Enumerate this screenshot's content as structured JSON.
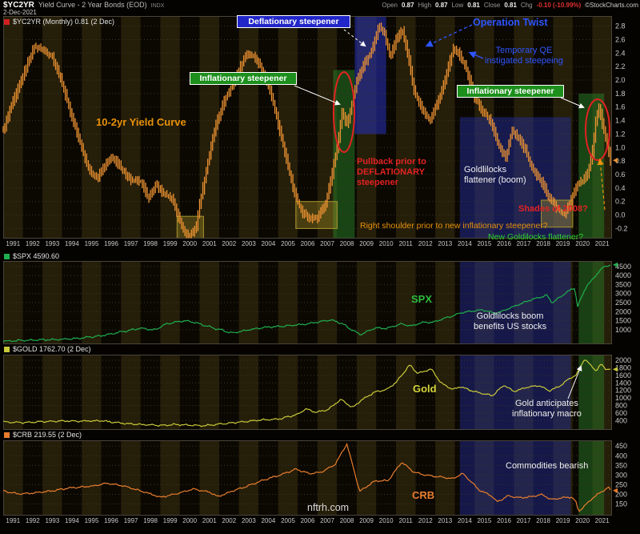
{
  "header": {
    "symbol": "$YC2YR",
    "title": "Yield Curve - 2 Year Bonds (EOD)",
    "index_tag": "INDX",
    "date": "2-Dec-2021",
    "source": "©StockCharts.com",
    "quote": {
      "open_label": "Open",
      "open_val": "0.87",
      "high_label": "High",
      "high_val": "0.87",
      "low_label": "Low",
      "low_val": "0.81",
      "close_label": "Close",
      "close_val": "0.81",
      "chg_label": "Chg",
      "chg_val": "-0.10 (-10.99%)"
    }
  },
  "legends": {
    "yc": "$YC2YR (Monthly) 0.81 (2 Dec)",
    "spx": "$SPX 4590.60",
    "gold": "$GOLD 1762.70 (2 Dec)",
    "crb": "$CRB 219.55 (2 Dec)"
  },
  "annotations": {
    "deflationary_steepener": "Deflationary steepener",
    "inflationary_steepener_1": "Inflationary steepener",
    "inflationary_steepener_2": "Inflationary steepener",
    "operation_twist": "Operation Twist",
    "temporary_qe": "Temporary QE\ninstigated steepeing",
    "yield_curve_label": "10-2yr Yield Curve",
    "pullback": "Pullback prior to\nDEFLATIONARY\nsteepener",
    "goldilocks_flattener": "Goldlilocks\nflattener (boom)",
    "shades_2008": "Shades of 2008?",
    "right_shoulder": "Right shoulder prior to new inflationary steepener?",
    "new_goldilocks": "New Goldilocks flattener?",
    "spx_label": "SPX",
    "goldilocks_boom": "Goldlilocks boom\nbenefits US stocks",
    "gold_label": "Gold",
    "gold_macro": "Gold anticipates\ninflationary macro",
    "commodities_bearish": "Commodities bearish",
    "crb_label": "CRB",
    "watermark": "nftrh.com"
  },
  "colors": {
    "background": "#050300",
    "stripe_light": "#251e09",
    "stripe_dark": "#0b0802",
    "grid": "#3a352a",
    "frame": "#4a443a",
    "axis_text": "#c8c8c8",
    "box_fill": "rgba(170,150,40,0.38)",
    "box_stroke": "#a8942f",
    "yc_bar": "#f09433",
    "spx_line": "#1faf4e",
    "gold_line": "#c9c93a",
    "crb_line": "#e87d2e",
    "annotation_blue": "#2e55ff",
    "annotation_red": "#e32222",
    "annotation_orange": "#e8920a",
    "annotation_green": "#2dd22d"
  },
  "x_years": [
    "1991",
    "1992",
    "1993",
    "1994",
    "1995",
    "1996",
    "1997",
    "1998",
    "1999",
    "2000",
    "2001",
    "2002",
    "2003",
    "2004",
    "2005",
    "2006",
    "2007",
    "2008",
    "2009",
    "2010",
    "2011",
    "2012",
    "2013",
    "2014",
    "2015",
    "2016",
    "2017",
    "2018",
    "2019",
    "2020",
    "2021"
  ],
  "chart_data": [
    {
      "id": "yc",
      "type": "bar",
      "title": "$YC2YR (Monthly) 10-2yr Yield Curve",
      "color": "#f09433",
      "x_range": [
        1991,
        2022
      ],
      "ylim": [
        -0.35,
        2.95
      ],
      "yticks": [
        2.8,
        2.6,
        2.4,
        2.2,
        2.0,
        1.8,
        1.6,
        1.4,
        1.2,
        1.0,
        0.8,
        0.6,
        0.4,
        0.2,
        0.0,
        -0.2
      ],
      "ytick_labels": [
        "2.8",
        "2.6",
        "2.4",
        "2.2",
        "2.0",
        "1.8",
        "1.6",
        "1.4",
        "1.2",
        "1.0",
        "0.8",
        "0.6",
        "0.4",
        "0.2",
        "0.0",
        "-0.2"
      ],
      "series": [
        [
          1991.0,
          1.25
        ],
        [
          1991.4,
          1.6
        ],
        [
          1991.8,
          1.9
        ],
        [
          1992.3,
          2.3
        ],
        [
          1992.6,
          2.5
        ],
        [
          1993.0,
          2.45
        ],
        [
          1993.5,
          2.35
        ],
        [
          1994.0,
          1.95
        ],
        [
          1994.5,
          1.45
        ],
        [
          1995.0,
          1.0
        ],
        [
          1995.4,
          0.65
        ],
        [
          1995.8,
          0.55
        ],
        [
          1996.2,
          0.75
        ],
        [
          1996.6,
          0.85
        ],
        [
          1997.0,
          0.7
        ],
        [
          1997.5,
          0.5
        ],
        [
          1998.0,
          0.5
        ],
        [
          1998.4,
          0.25
        ],
        [
          1998.8,
          0.45
        ],
        [
          1999.2,
          0.3
        ],
        [
          1999.6,
          0.25
        ],
        [
          2000.0,
          -0.1
        ],
        [
          2000.4,
          -0.33
        ],
        [
          2000.8,
          -0.2
        ],
        [
          2001.0,
          0.15
        ],
        [
          2001.4,
          0.75
        ],
        [
          2001.8,
          1.3
        ],
        [
          2002.2,
          1.65
        ],
        [
          2002.6,
          1.9
        ],
        [
          2003.0,
          2.15
        ],
        [
          2003.4,
          2.4
        ],
        [
          2003.8,
          2.35
        ],
        [
          2004.2,
          2.15
        ],
        [
          2004.6,
          1.85
        ],
        [
          2005.0,
          1.35
        ],
        [
          2005.4,
          0.85
        ],
        [
          2005.8,
          0.35
        ],
        [
          2006.2,
          0.05
        ],
        [
          2006.6,
          -0.05
        ],
        [
          2007.0,
          -0.05
        ],
        [
          2007.4,
          0.15
        ],
        [
          2007.7,
          0.55
        ],
        [
          2008.0,
          1.0
        ],
        [
          2008.25,
          1.5
        ],
        [
          2008.5,
          1.35
        ],
        [
          2008.75,
          1.65
        ],
        [
          2009.0,
          2.0
        ],
        [
          2009.4,
          2.25
        ],
        [
          2009.8,
          2.45
        ],
        [
          2010.1,
          2.8
        ],
        [
          2010.4,
          2.7
        ],
        [
          2010.7,
          2.35
        ],
        [
          2011.0,
          2.6
        ],
        [
          2011.3,
          2.75
        ],
        [
          2011.6,
          2.4
        ],
        [
          2011.9,
          1.85
        ],
        [
          2012.3,
          1.6
        ],
        [
          2012.7,
          1.4
        ],
        [
          2013.1,
          1.65
        ],
        [
          2013.5,
          2.0
        ],
        [
          2013.9,
          2.45
        ],
        [
          2014.2,
          2.4
        ],
        [
          2014.6,
          2.15
        ],
        [
          2015.0,
          1.75
        ],
        [
          2015.4,
          1.55
        ],
        [
          2015.8,
          1.4
        ],
        [
          2016.2,
          1.05
        ],
        [
          2016.6,
          0.85
        ],
        [
          2016.9,
          1.25
        ],
        [
          2017.2,
          1.15
        ],
        [
          2017.6,
          0.95
        ],
        [
          2018.0,
          0.65
        ],
        [
          2018.4,
          0.5
        ],
        [
          2018.8,
          0.25
        ],
        [
          2019.2,
          0.1
        ],
        [
          2019.6,
          0.0
        ],
        [
          2019.9,
          0.2
        ],
        [
          2020.2,
          0.45
        ],
        [
          2020.5,
          0.5
        ],
        [
          2020.8,
          0.65
        ],
        [
          2021.0,
          0.95
        ],
        [
          2021.2,
          1.45
        ],
        [
          2021.35,
          1.58
        ],
        [
          2021.5,
          1.35
        ],
        [
          2021.7,
          1.1
        ],
        [
          2021.92,
          0.81
        ]
      ],
      "bands": [
        {
          "name": "inflationary-steepener-2008",
          "from": 2007.8,
          "to": 2008.9,
          "v1": -0.35,
          "v2": 2.15,
          "color": "rgba(40,130,40,0.50)"
        },
        {
          "name": "deflationary-steepener-2009",
          "from": 2008.9,
          "to": 2010.5,
          "v1": 1.2,
          "v2": 2.95,
          "color": "rgba(40,50,190,0.55)"
        },
        {
          "name": "goldilocks-flattener-2014-2019",
          "from": 2014.25,
          "to": 2019.9,
          "v1": -0.35,
          "v2": 1.45,
          "color": "rgba(35,48,170,0.45)"
        },
        {
          "name": "inflationary-steepener-2020",
          "from": 2020.3,
          "to": 2021.6,
          "v1": -0.35,
          "v2": 1.8,
          "color": "rgba(40,130,40,0.50)"
        }
      ],
      "boxes": [
        {
          "name": "inversion-2000",
          "from": 1999.85,
          "to": 2001.2,
          "v1": -0.35,
          "v2": -0.02
        },
        {
          "name": "flat-bottom-2006",
          "from": 2005.9,
          "to": 2008.0,
          "v1": -0.2,
          "v2": 0.2
        },
        {
          "name": "flat-bottom-2019",
          "from": 2018.4,
          "to": 2020.0,
          "v1": -0.18,
          "v2": 0.22
        }
      ]
    },
    {
      "id": "spx",
      "type": "line",
      "title": "$SPX S&P 500",
      "color": "#1faf4e",
      "x_range": [
        1991,
        2022
      ],
      "ylim": [
        200,
        4800
      ],
      "yticks": [
        4500,
        4000,
        3500,
        3000,
        2500,
        2000,
        1500,
        1000
      ],
      "ytick_labels": [
        "4500",
        "4000",
        "3500",
        "3000",
        "2500",
        "2000",
        "1500",
        "1000"
      ],
      "series": [
        [
          1991.0,
          375
        ],
        [
          1992.0,
          415
        ],
        [
          1993.0,
          450
        ],
        [
          1994.0,
          465
        ],
        [
          1995.0,
          550
        ],
        [
          1996.0,
          670
        ],
        [
          1997.0,
          880
        ],
        [
          1998.0,
          1090
        ],
        [
          1998.7,
          980
        ],
        [
          1999.3,
          1330
        ],
        [
          2000.2,
          1500
        ],
        [
          2000.8,
          1400
        ],
        [
          2001.7,
          1100
        ],
        [
          2002.7,
          815
        ],
        [
          2003.5,
          1000
        ],
        [
          2004.3,
          1130
        ],
        [
          2005.3,
          1200
        ],
        [
          2006.3,
          1300
        ],
        [
          2007.7,
          1550
        ],
        [
          2008.3,
          1320
        ],
        [
          2008.9,
          900
        ],
        [
          2009.2,
          735
        ],
        [
          2009.9,
          1090
        ],
        [
          2010.5,
          1080
        ],
        [
          2011.3,
          1330
        ],
        [
          2011.8,
          1200
        ],
        [
          2012.3,
          1400
        ],
        [
          2012.9,
          1420
        ],
        [
          2013.6,
          1680
        ],
        [
          2014.4,
          1960
        ],
        [
          2015.4,
          2100
        ],
        [
          2016.1,
          1900
        ],
        [
          2016.9,
          2240
        ],
        [
          2017.9,
          2670
        ],
        [
          2018.7,
          2910
        ],
        [
          2018.95,
          2480
        ],
        [
          2019.6,
          3000
        ],
        [
          2020.1,
          3330
        ],
        [
          2020.25,
          2280
        ],
        [
          2020.7,
          3430
        ],
        [
          2021.0,
          3760
        ],
        [
          2021.3,
          4180
        ],
        [
          2021.6,
          4480
        ],
        [
          2021.92,
          4590.6
        ]
      ],
      "bands": [
        {
          "name": "goldilocks-flattener-2014-2019",
          "from": 2014.25,
          "to": 2019.9,
          "color": "rgba(35,48,170,0.42)"
        },
        {
          "name": "inflationary-steepener-2020",
          "from": 2020.3,
          "to": 2021.6,
          "color": "rgba(42,130,42,0.45)"
        }
      ],
      "boxes": []
    },
    {
      "id": "gold",
      "type": "line",
      "title": "$GOLD Gold - Continuous Contract",
      "color": "#c9c93a",
      "x_range": [
        1991,
        2022
      ],
      "ylim": [
        150,
        2150
      ],
      "yticks": [
        2000,
        1800,
        1600,
        1400,
        1200,
        1000,
        800,
        600,
        400
      ],
      "ytick_labels": [
        "2000",
        "1800",
        "1600",
        "1400",
        "1200",
        "1000",
        "800",
        "600",
        "400"
      ],
      "series": [
        [
          1991.0,
          365
        ],
        [
          1992.0,
          345
        ],
        [
          1993.0,
          370
        ],
        [
          1994.0,
          385
        ],
        [
          1995.0,
          385
        ],
        [
          1996.0,
          395
        ],
        [
          1997.0,
          330
        ],
        [
          1998.0,
          295
        ],
        [
          1999.0,
          270
        ],
        [
          1999.8,
          295
        ],
        [
          2000.5,
          275
        ],
        [
          2001.3,
          265
        ],
        [
          2002.0,
          305
        ],
        [
          2003.0,
          355
        ],
        [
          2004.0,
          410
        ],
        [
          2005.0,
          435
        ],
        [
          2006.0,
          560
        ],
        [
          2006.4,
          715
        ],
        [
          2006.9,
          620
        ],
        [
          2007.5,
          680
        ],
        [
          2008.2,
          960
        ],
        [
          2008.8,
          740
        ],
        [
          2009.2,
          930
        ],
        [
          2009.9,
          1150
        ],
        [
          2010.5,
          1220
        ],
        [
          2011.0,
          1410
        ],
        [
          2011.7,
          1880
        ],
        [
          2012.1,
          1650
        ],
        [
          2012.8,
          1770
        ],
        [
          2013.3,
          1390
        ],
        [
          2013.9,
          1230
        ],
        [
          2014.3,
          1300
        ],
        [
          2014.9,
          1180
        ],
        [
          2015.9,
          1060
        ],
        [
          2016.5,
          1340
        ],
        [
          2017.0,
          1170
        ],
        [
          2017.7,
          1290
        ],
        [
          2018.3,
          1330
        ],
        [
          2018.8,
          1190
        ],
        [
          2019.3,
          1300
        ],
        [
          2019.8,
          1500
        ],
        [
          2020.2,
          1620
        ],
        [
          2020.6,
          2040
        ],
        [
          2020.95,
          1850
        ],
        [
          2021.2,
          1720
        ],
        [
          2021.45,
          1900
        ],
        [
          2021.7,
          1760
        ],
        [
          2021.92,
          1762.7
        ]
      ],
      "bands": [
        {
          "name": "goldilocks-flattener-2014-2019",
          "from": 2014.25,
          "to": 2019.9,
          "color": "rgba(35,48,170,0.42)"
        },
        {
          "name": "inflationary-steepener-2020",
          "from": 2020.3,
          "to": 2021.6,
          "color": "rgba(42,130,42,0.45)"
        }
      ],
      "boxes": []
    },
    {
      "id": "crb",
      "type": "line",
      "title": "$CRB Reuters/Jefferies CRB Index",
      "color": "#e87d2e",
      "x_range": [
        1991,
        2022
      ],
      "ylim": [
        90,
        480
      ],
      "yticks": [
        450,
        400,
        350,
        300,
        250,
        200,
        150
      ],
      "ytick_labels": [
        "450",
        "400",
        "350",
        "300",
        "250",
        "200",
        "150"
      ],
      "series": [
        [
          1991.0,
          218
        ],
        [
          1991.8,
          202
        ],
        [
          1992.6,
          208
        ],
        [
          1993.5,
          218
        ],
        [
          1994.5,
          235
        ],
        [
          1995.5,
          242
        ],
        [
          1996.3,
          258
        ],
        [
          1997.2,
          242
        ],
        [
          1998.2,
          212
        ],
        [
          1999.0,
          185
        ],
        [
          1999.9,
          205
        ],
        [
          2000.7,
          228
        ],
        [
          2001.5,
          212
        ],
        [
          2001.95,
          188
        ],
        [
          2002.6,
          215
        ],
        [
          2003.3,
          238
        ],
        [
          2004.2,
          272
        ],
        [
          2005.1,
          300
        ],
        [
          2005.9,
          330
        ],
        [
          2006.6,
          308
        ],
        [
          2007.2,
          315
        ],
        [
          2007.9,
          355
        ],
        [
          2008.5,
          462
        ],
        [
          2008.85,
          330
        ],
        [
          2009.15,
          215
        ],
        [
          2009.9,
          268
        ],
        [
          2010.6,
          272
        ],
        [
          2011.3,
          368
        ],
        [
          2011.9,
          315
        ],
        [
          2012.5,
          300
        ],
        [
          2013.1,
          292
        ],
        [
          2013.9,
          282
        ],
        [
          2014.4,
          308
        ],
        [
          2014.8,
          268
        ],
        [
          2015.2,
          225
        ],
        [
          2015.9,
          190
        ],
        [
          2016.15,
          160
        ],
        [
          2016.7,
          192
        ],
        [
          2017.3,
          182
        ],
        [
          2017.9,
          188
        ],
        [
          2018.4,
          200
        ],
        [
          2018.95,
          172
        ],
        [
          2019.4,
          182
        ],
        [
          2019.95,
          185
        ],
        [
          2020.15,
          165
        ],
        [
          2020.3,
          110
        ],
        [
          2020.7,
          150
        ],
        [
          2021.0,
          180
        ],
        [
          2021.3,
          202
        ],
        [
          2021.6,
          222
        ],
        [
          2021.85,
          238
        ],
        [
          2021.92,
          219.55
        ]
      ],
      "bands": [
        {
          "name": "goldilocks-flattener-2014-2019",
          "from": 2014.25,
          "to": 2019.9,
          "color": "rgba(35,48,170,0.42)"
        },
        {
          "name": "inflationary-steepener-2020",
          "from": 2020.3,
          "to": 2021.6,
          "color": "rgba(42,130,42,0.45)"
        }
      ],
      "boxes": []
    }
  ]
}
